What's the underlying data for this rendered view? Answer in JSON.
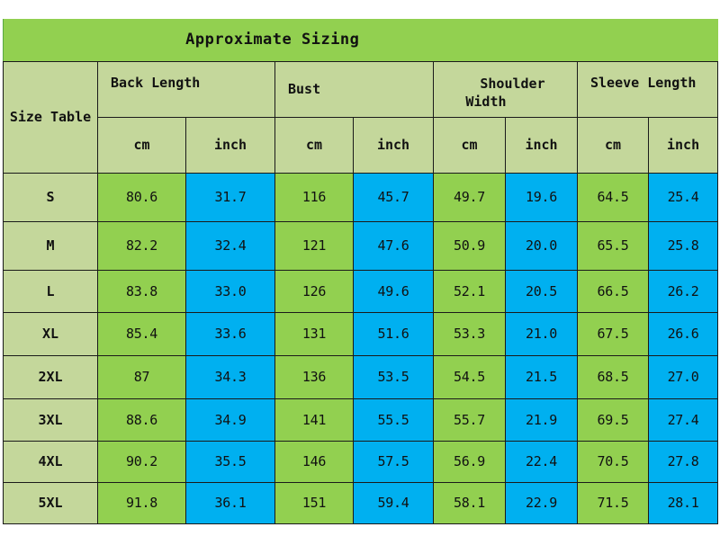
{
  "title": "Approximate Sizing",
  "corner_label": "Size Table",
  "groups": [
    {
      "label": "Back Length"
    },
    {
      "label": "Bust"
    },
    {
      "label": "Shoulder Width",
      "line1": "Shoulder",
      "line2": "Width"
    },
    {
      "label": "Sleeve Length"
    }
  ],
  "units": [
    "cm",
    "inch",
    "cm",
    "inch",
    "cm",
    "inch",
    "cm",
    "inch"
  ],
  "colors": {
    "header_green": "#92d050",
    "header_light": "#c4d79b",
    "cm_green": "#92d050",
    "inch_blue": "#00b0f0"
  },
  "rows": [
    {
      "size": "S",
      "values": [
        "80.6",
        "31.7",
        "116",
        "45.7",
        "49.7",
        "19.6",
        "64.5",
        "25.4"
      ]
    },
    {
      "size": "M",
      "values": [
        "82.2",
        "32.4",
        "121",
        "47.6",
        "50.9",
        "20.0",
        "65.5",
        "25.8"
      ]
    },
    {
      "size": "L",
      "values": [
        "83.8",
        "33.0",
        "126",
        "49.6",
        "52.1",
        "20.5",
        "66.5",
        "26.2"
      ]
    },
    {
      "size": "XL",
      "values": [
        "85.4",
        "33.6",
        "131",
        "51.6",
        "53.3",
        "21.0",
        "67.5",
        "26.6"
      ]
    },
    {
      "size": "2XL",
      "values": [
        "87",
        "34.3",
        "136",
        "53.5",
        "54.5",
        "21.5",
        "68.5",
        "27.0"
      ]
    },
    {
      "size": "3XL",
      "values": [
        "88.6",
        "34.9",
        "141",
        "55.5",
        "55.7",
        "21.9",
        "69.5",
        "27.4"
      ]
    },
    {
      "size": "4XL",
      "values": [
        "90.2",
        "35.5",
        "146",
        "57.5",
        "56.9",
        "22.4",
        "70.5",
        "27.8"
      ]
    },
    {
      "size": "5XL",
      "values": [
        "91.8",
        "36.1",
        "151",
        "59.4",
        "58.1",
        "22.9",
        "71.5",
        "28.1"
      ]
    }
  ]
}
